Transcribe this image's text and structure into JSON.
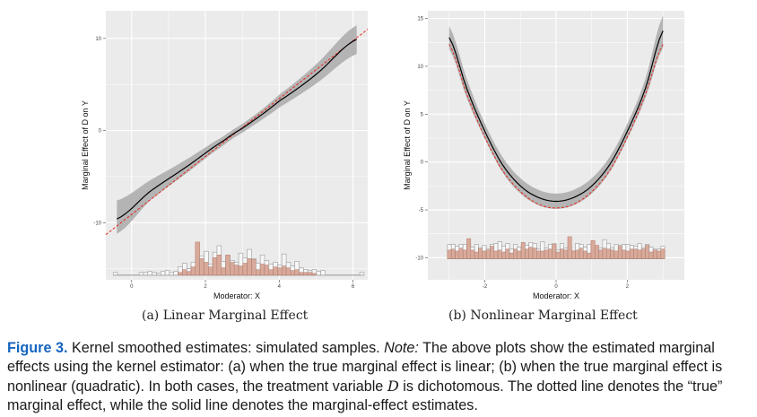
{
  "figure": {
    "label": "Figure 3.",
    "caption_lead": "Kernel smoothed estimates: simulated samples.",
    "note_label": "Note:",
    "caption_part1": "The above plots show the estimated marginal effects using the kernel estimator: (a) when the true marginal effect is linear; (b) when the true marginal effect is nonlinear (quadratic). In both cases, the treatment variable",
    "treatment_var": "D",
    "caption_part2": "is dichotomous. The dotted line denotes the “true” marginal effect, while the solid line denotes the marginal-effect estimates."
  },
  "panels": [
    {
      "subcaption": "(a) Linear Marginal Effect"
    },
    {
      "subcaption": "(b) Nonlinear Marginal Effect"
    }
  ],
  "colors": {
    "panel_bg": "#ebebeb",
    "grid": "#ffffff",
    "band": "#b4b4b4",
    "estimate": "#000000",
    "true_effect": "#e8281e",
    "bar_treated": "#d9a99a",
    "bar_control_outline": "#9a9a9a",
    "caption_label": "#1565c0"
  },
  "chart_data": [
    {
      "type": "line",
      "title": "(a) Linear Marginal Effect",
      "xlabel": "Moderator: X",
      "ylabel": "Marginal Effect of D on Y",
      "xlim": [
        -0.7,
        6.4
      ],
      "ylim": [
        -16.2,
        13
      ],
      "xticks": [
        0,
        2,
        4,
        6
      ],
      "yticks": [
        -10,
        0,
        10
      ],
      "grid": true,
      "series": [
        {
          "name": "Marginal-effect estimate",
          "style": "solid",
          "x": [
            -0.4,
            0.5,
            1.5,
            2.5,
            3.2,
            4.0,
            5.0,
            6.1
          ],
          "y": [
            -9.6,
            -6.6,
            -3.9,
            -1.1,
            0.8,
            3.2,
            6.1,
            9.9
          ],
          "ci_lower": [
            -11.2,
            -7.6,
            -4.6,
            -1.6,
            0.3,
            2.5,
            5.1,
            8.3
          ],
          "ci_upper": [
            -7.6,
            -5.4,
            -3.1,
            -0.6,
            1.3,
            3.9,
            7.2,
            11.4
          ]
        },
        {
          "name": "True marginal effect",
          "style": "dotted",
          "x": [
            -0.7,
            6.4
          ],
          "y": [
            -11.3,
            11.0
          ]
        }
      ],
      "histogram": {
        "baseline": -15.7,
        "control_heights": [
          0.3,
          0,
          0,
          0,
          0,
          0,
          0.3,
          0.3,
          0.4,
          0.3,
          0.2,
          0.4,
          0.5,
          0.3,
          0.4,
          0.9,
          1.3,
          0.7,
          1.4,
          1.7,
          2.1,
          2.6,
          1.2,
          2.5,
          3.2,
          1.5,
          2.1,
          1.6,
          1.4,
          2.4,
          1.9,
          2.8,
          1.8,
          1.3,
          2.2,
          1.6,
          1.2,
          1.4,
          1.1,
          2.3,
          1.4,
          1.0,
          1.5,
          0.8,
          0.6,
          0.5,
          0.6,
          0.4,
          0.5,
          0,
          0,
          0,
          0,
          0,
          0,
          0,
          0,
          0.3
        ],
        "treated_heights": [
          0,
          0,
          0,
          0,
          0,
          0,
          0,
          0,
          0,
          0,
          0,
          0,
          0,
          0,
          0,
          0.3,
          0.6,
          0.4,
          0.9,
          3.6,
          1.8,
          1.4,
          0.9,
          1.9,
          2.2,
          0.8,
          2.2,
          1.4,
          1.1,
          1.0,
          1.3,
          1.8,
          1.7,
          0.6,
          1.2,
          1.1,
          0.6,
          0.9,
          0.8,
          1.0,
          0.8,
          0.5,
          0.6,
          0.3,
          0.3,
          0.3,
          0.2,
          0,
          0,
          0,
          0,
          0,
          0,
          0,
          0,
          0,
          0,
          0
        ]
      }
    },
    {
      "type": "line",
      "title": "(b) Nonlinear Marginal Effect",
      "xlabel": "Moderator: X",
      "ylabel": "Marginal Effect of D on Y",
      "xlim": [
        -3.6,
        3.6
      ],
      "ylim": [
        -12.3,
        15.8
      ],
      "xticks": [
        -2,
        0,
        2
      ],
      "yticks": [
        -10,
        -5,
        0,
        5,
        10,
        15
      ],
      "grid": true,
      "series": [
        {
          "name": "Marginal-effect estimate",
          "style": "solid",
          "x": [
            -3.0,
            -2.5,
            -2.0,
            -1.5,
            -1.0,
            -0.5,
            0.0,
            0.5,
            1.0,
            1.5,
            2.0,
            2.5,
            3.0
          ],
          "y": [
            13.0,
            7.6,
            3.2,
            -0.3,
            -2.5,
            -3.7,
            -4.1,
            -3.7,
            -2.5,
            -0.3,
            3.2,
            7.6,
            13.7
          ],
          "ci_lower": [
            11.8,
            6.6,
            2.4,
            -1.1,
            -3.3,
            -4.5,
            -4.9,
            -4.5,
            -3.3,
            -1.1,
            2.4,
            6.6,
            11.9
          ],
          "ci_upper": [
            14.2,
            8.6,
            4.0,
            0.5,
            -1.7,
            -2.9,
            -3.3,
            -2.9,
            -1.7,
            0.5,
            4.0,
            8.6,
            15.3
          ]
        },
        {
          "name": "True marginal effect",
          "style": "dotted",
          "x": [
            -3.0,
            -2.5,
            -2.0,
            -1.5,
            -1.0,
            -0.5,
            0.0,
            0.5,
            1.0,
            1.5,
            2.0,
            2.5,
            3.0
          ],
          "y": [
            12.3,
            7.0,
            2.6,
            -0.9,
            -3.1,
            -4.4,
            -4.8,
            -4.4,
            -3.1,
            -0.9,
            2.6,
            7.0,
            12.3
          ]
        }
      ],
      "histogram": {
        "baseline": -10.1,
        "control_heights": [
          1.5,
          1.5,
          1.3,
          1.5,
          1.5,
          1.6,
          1.2,
          1.5,
          1.1,
          1.4,
          1.0,
          1.5,
          1.6,
          1.8,
          1.3,
          1.6,
          1.0,
          1.5,
          1.2,
          1.3,
          1.4,
          1.7,
          1.6,
          1.0,
          1.8,
          1.1,
          1.5,
          1.6,
          0.9,
          1.6,
          1.1,
          1.3,
          0.8,
          1.6,
          1.5,
          1.2,
          1.5,
          1.4,
          0.9,
          1.1,
          2.0,
          1.6,
          1.1,
          1.5,
          1.4,
          1.5,
          1.5,
          1.4,
          1.3,
          1.6,
          1.1,
          1.5,
          1.2,
          1.0,
          1.0,
          1.3
        ],
        "treated_heights": [
          0.9,
          1.0,
          0.8,
          1.1,
          0.9,
          2.1,
          0.9,
          0.7,
          1.1,
          0.8,
          0.9,
          1.3,
          0.8,
          0.9,
          0.7,
          1.0,
          0.6,
          1.0,
          0.8,
          1.7,
          1.0,
          1.2,
          1.1,
          0.8,
          0.8,
          0.9,
          1.0,
          1.5,
          0.7,
          1.0,
          0.9,
          2.3,
          0.8,
          0.9,
          1.1,
          0.8,
          0.6,
          1.9,
          1.4,
          0.9,
          1.1,
          1.0,
          0.9,
          0.8,
          1.3,
          0.9,
          0.8,
          1.0,
          1.0,
          0.9,
          1.0,
          1.4,
          0.7,
          0.9,
          0.8,
          1.0
        ]
      }
    }
  ]
}
